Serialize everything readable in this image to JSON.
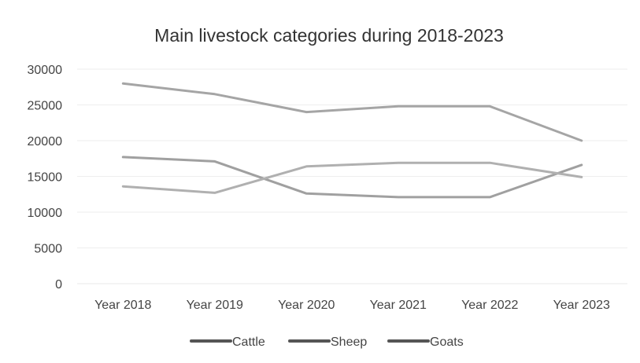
{
  "chart_data": {
    "type": "line",
    "title": "Main livestock categories during 2018-2023",
    "categories": [
      "Year 2018",
      "Year 2019",
      "Year 2020",
      "Year 2021",
      "Year 2022",
      "Year 2023"
    ],
    "yticks": [
      "0",
      "5000",
      "10000",
      "15000",
      "20000",
      "25000",
      "30000"
    ],
    "ylim": [
      0,
      30000
    ],
    "grid": true,
    "legend_position": "bottom",
    "series": [
      {
        "name": "Cattle",
        "values": [
          28000,
          26500,
          24000,
          24800,
          24800,
          20000
        ],
        "color": "#a5a5a5"
      },
      {
        "name": "Sheep",
        "values": [
          17700,
          17100,
          12600,
          12100,
          12100,
          16600
        ],
        "color": "#a0a0a0"
      },
      {
        "name": "Goats",
        "values": [
          13600,
          12700,
          16400,
          16900,
          16900,
          14900
        ],
        "color": "#b0b0b0"
      }
    ]
  }
}
